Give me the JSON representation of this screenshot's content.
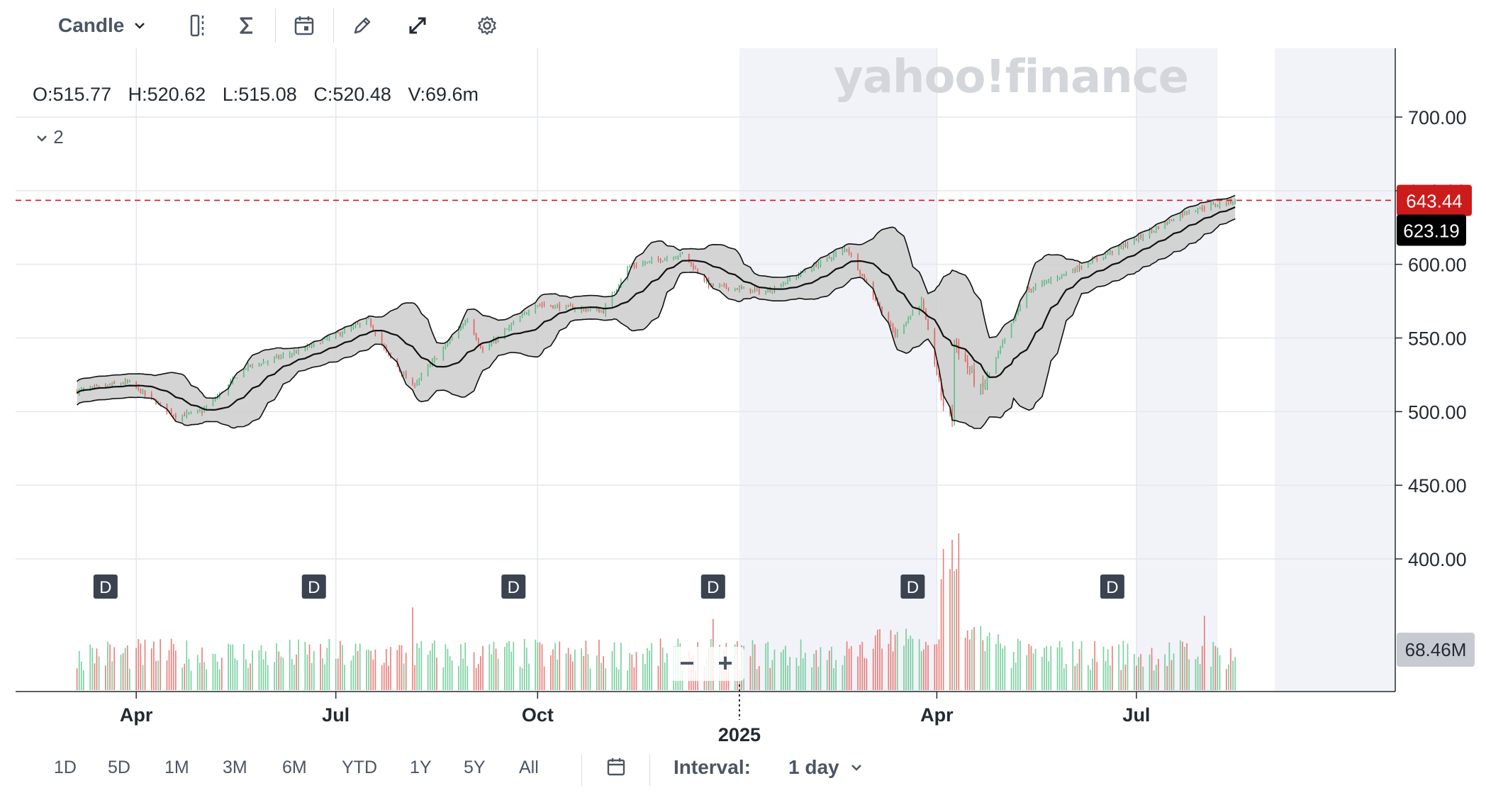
{
  "toolbar": {
    "chart_type": "Candle",
    "icons": [
      "compare-icon",
      "indicators-icon",
      "events-calendar-icon",
      "draw-icon",
      "fullscreen-icon",
      "settings-icon"
    ]
  },
  "watermark": "yahoo!finance",
  "ohlc": {
    "open": "O:515.77",
    "high": "H:520.62",
    "low": "L:515.08",
    "close": "C:520.48",
    "volume": "V:69.6m"
  },
  "indicator_count": "2",
  "zoom": {
    "minus": "−",
    "plus": "+"
  },
  "range_buttons": [
    "1D",
    "5D",
    "1M",
    "3M",
    "6M",
    "YTD",
    "1Y",
    "5Y",
    "All"
  ],
  "interval": {
    "label": "Interval:",
    "value": "1 day"
  },
  "colors": {
    "up": "#5cc489",
    "down": "#e5645f",
    "last_price": "#cc1b1b",
    "band_fill": "#cdcdcd",
    "shade": "#f1f3f9"
  },
  "chart_data": {
    "type": "candlestick",
    "ylim": [
      390,
      740
    ],
    "y_ticks": [
      "700.00",
      "650.00",
      "600.00",
      "550.00",
      "500.00",
      "450.00",
      "400.00"
    ],
    "x_ticks": [
      "Apr",
      "Jul",
      "Oct",
      "Apr",
      "Jul"
    ],
    "year_label": "2025",
    "last_price_label": "643.44",
    "last_price": 643.44,
    "sma_label": "623.19",
    "sma_value": 623.19,
    "volume_label": "68.46M",
    "dividend_marker": "D",
    "dividend_count": 6,
    "series_anchors": [
      [
        "2024-03-05",
        514
      ],
      [
        "2024-03-28",
        520
      ],
      [
        "2024-04-19",
        497
      ],
      [
        "2024-05-01",
        500
      ],
      [
        "2024-05-21",
        530
      ],
      [
        "2024-06-14",
        541
      ],
      [
        "2024-07-16",
        562
      ],
      [
        "2024-07-24",
        540
      ],
      [
        "2024-08-05",
        517
      ],
      [
        "2024-08-30",
        563
      ],
      [
        "2024-09-06",
        541
      ],
      [
        "2024-09-30",
        573
      ],
      [
        "2024-10-31",
        568
      ],
      [
        "2024-11-11",
        598
      ],
      [
        "2024-12-06",
        607
      ],
      [
        "2024-12-18",
        586
      ],
      [
        "2025-01-13",
        581
      ],
      [
        "2025-02-19",
        611
      ],
      [
        "2025-03-10",
        560
      ],
      [
        "2025-03-13",
        552
      ],
      [
        "2025-03-25",
        575
      ],
      [
        "2025-04-04",
        505
      ],
      [
        "2025-04-08",
        496
      ],
      [
        "2025-04-09",
        548
      ],
      [
        "2025-04-21",
        513
      ],
      [
        "2025-05-12",
        582
      ],
      [
        "2025-06-06",
        599
      ],
      [
        "2025-06-27",
        614
      ],
      [
        "2025-07-24",
        636
      ],
      [
        "2025-08-15",
        643.44
      ]
    ],
    "volume_range_m": [
      30,
      250
    ]
  }
}
